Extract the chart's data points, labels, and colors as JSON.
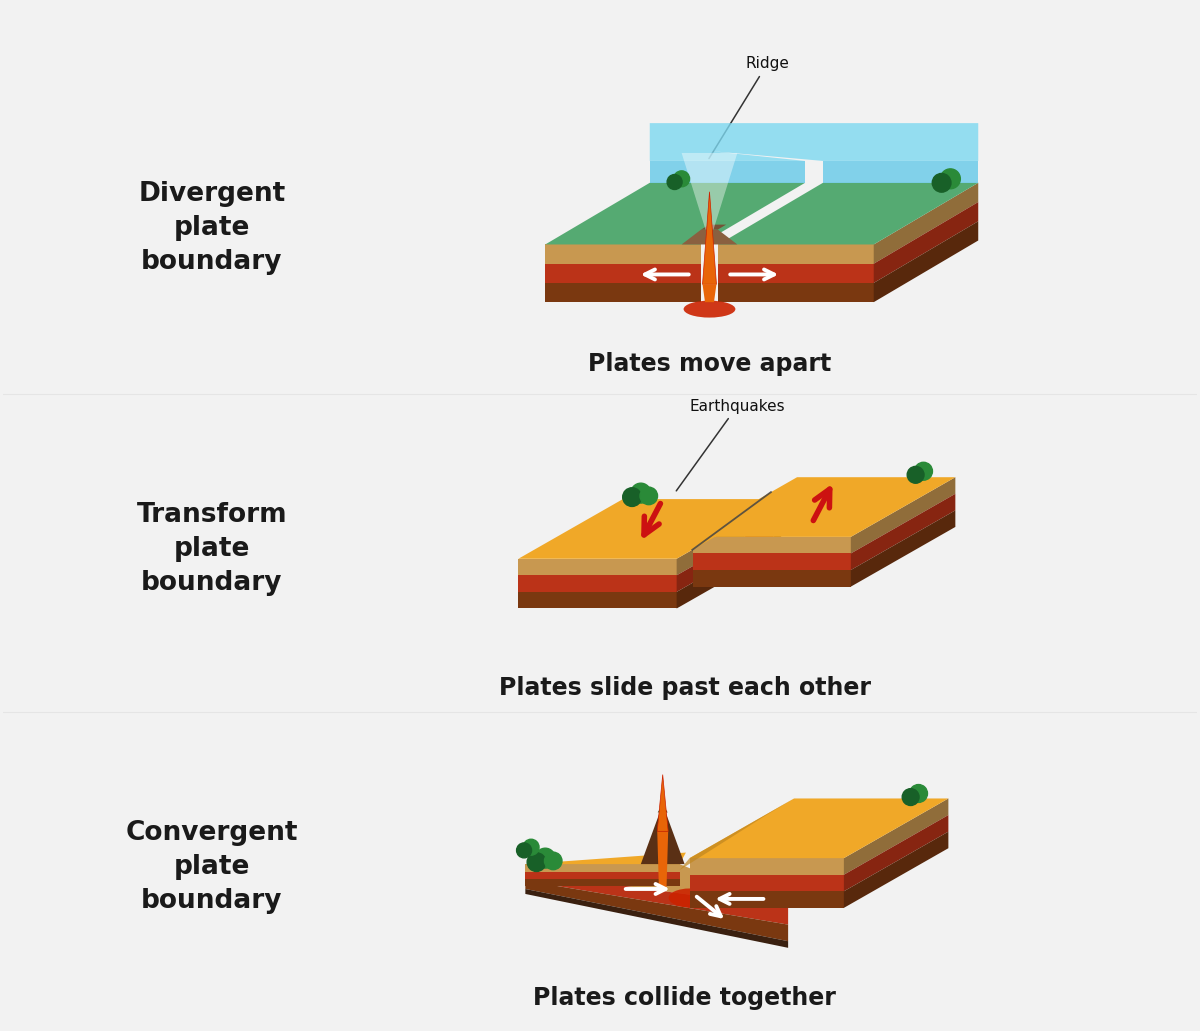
{
  "bg_color": "#f2f2f2",
  "label_color": "#1a1a1a",
  "panels": [
    {
      "label": "Divergent\nplate\nboundary",
      "sublabel": "Plates move apart",
      "annotation": "Ridge",
      "type": "divergent"
    },
    {
      "label": "Transform\nplate\nboundary",
      "sublabel": "Plates slide past each other",
      "annotation": "Earthquakes",
      "type": "transform"
    },
    {
      "label": "Convergent\nplate\nboundary",
      "sublabel": "Plates collide together",
      "annotation": "",
      "type": "convergent"
    }
  ],
  "colors": {
    "water": "#55c5e8",
    "water_top": "#7dd8f0",
    "water_side": "#3a9fc0",
    "seafloor_green": "#55aa72",
    "seafloor_green2": "#3a8a58",
    "plate_orange": "#f0a828",
    "plate_orange2": "#e09010",
    "plate_red": "#bb3318",
    "plate_red2": "#992210",
    "plate_brown": "#7a3810",
    "plate_tan": "#c89850",
    "plate_tan2": "#b08040",
    "lava_orange": "#e86508",
    "lava_red": "#cc2200",
    "lava_yellow": "#ffcc00",
    "ridge_brown": "#8a6040",
    "tree_green": "#2a8a38",
    "tree_dark": "#186028",
    "arrow_white": "#ffffff",
    "arrow_red": "#cc1111",
    "fault_line": "#444444",
    "shadow": "#c8c8c8"
  }
}
